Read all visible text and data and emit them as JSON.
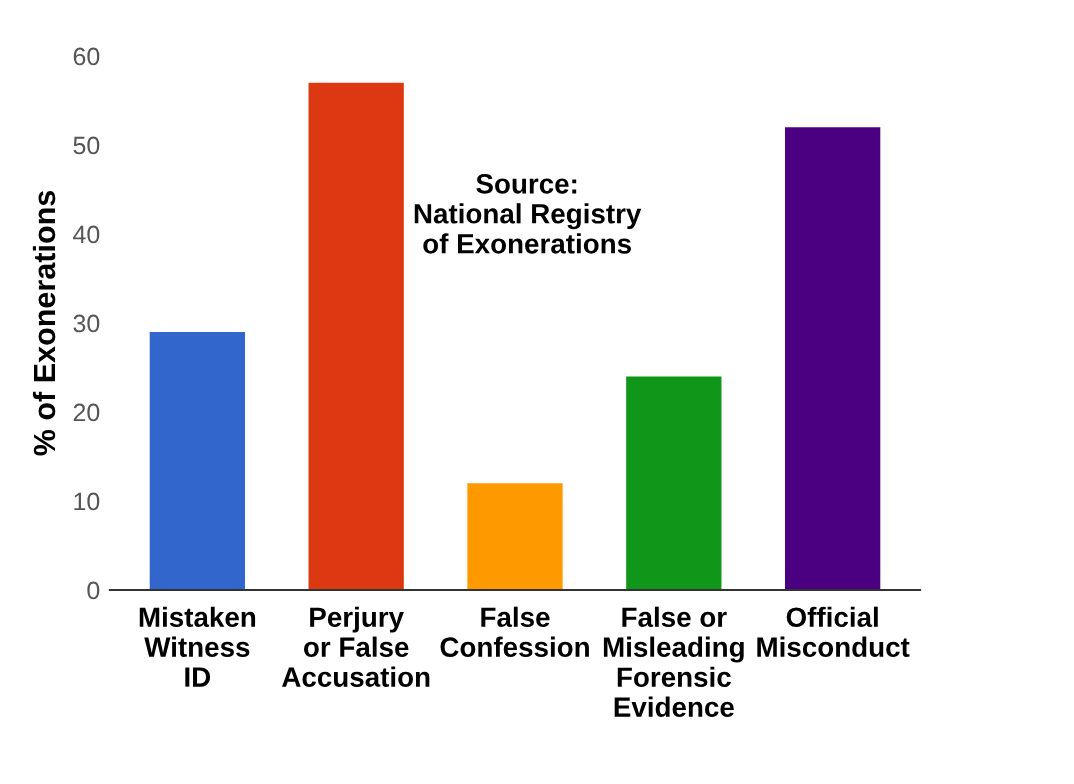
{
  "chart_data": {
    "type": "bar",
    "ylabel": "% of Exonerations",
    "categories": [
      "Mistaken\nWitness\nID",
      "Perjury\nor False\nAccusation",
      "False\nConfession",
      "False or\nMisleading\nForensic\nEvidence",
      "Official\nMisconduct"
    ],
    "values": [
      29,
      57,
      12,
      24,
      52
    ],
    "colors": [
      "#3366cc",
      "#dc3912",
      "#ff9900",
      "#109618",
      "#4b0082"
    ],
    "ylim": [
      0,
      60
    ],
    "yticks": [
      0,
      10,
      20,
      30,
      40,
      50,
      60
    ],
    "annotations": [
      "Source:\nNational Registry\nof Exonerations"
    ],
    "grid": false,
    "legend": false
  }
}
